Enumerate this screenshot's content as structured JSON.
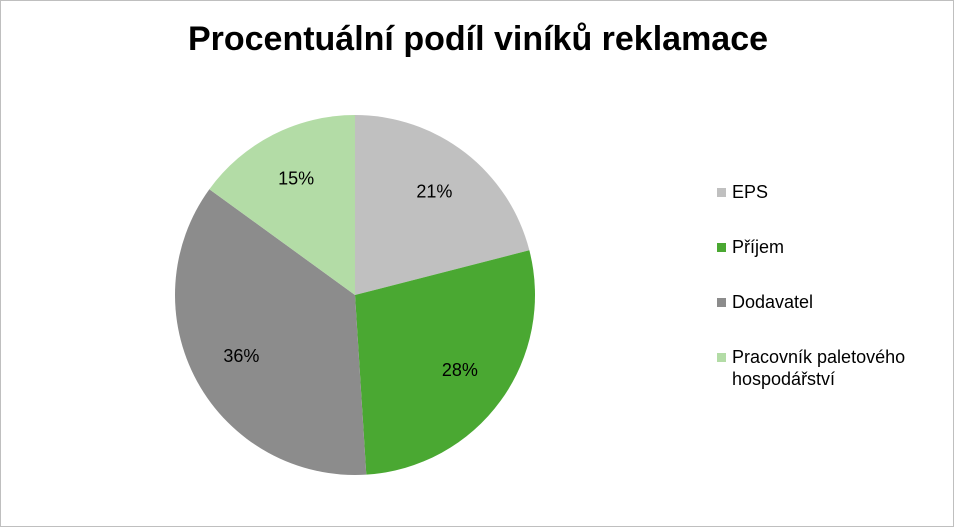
{
  "chart_data": {
    "type": "pie",
    "title": "Procentuální podíl viníků reklamace",
    "categories": [
      "EPS",
      "Příjem",
      "Dodavatel",
      "Pracovník paletového hospodářství"
    ],
    "values": [
      21,
      28,
      36,
      15
    ],
    "value_labels": [
      "21%",
      "28%",
      "36%",
      "15%"
    ],
    "colors": [
      "#c0c0c0",
      "#4aa832",
      "#8c8c8c",
      "#b3dca6"
    ],
    "legend": "right"
  }
}
